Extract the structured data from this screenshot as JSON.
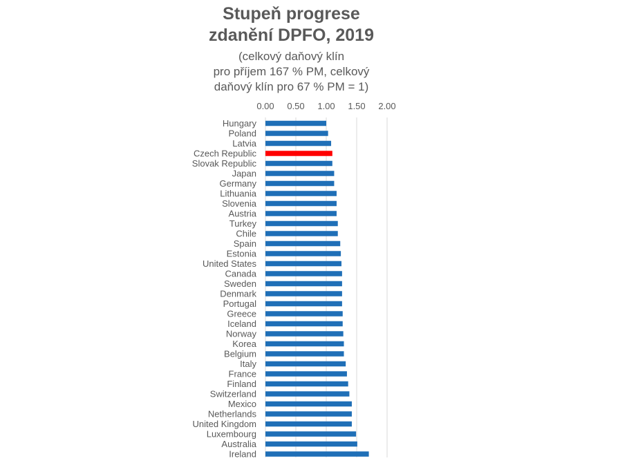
{
  "chart_data": {
    "type": "bar",
    "orientation": "horizontal",
    "title_lines": [
      "Stupeň progrese",
      "zdanění DPFO, 2019"
    ],
    "subtitle_lines": [
      "(celkový daňový klín",
      "pro příjem 167 % PM, celkový",
      "daňový klín pro 67 % PM = 1)"
    ],
    "x_ticks": [
      "0.00",
      "0.50",
      "1.00",
      "1.50",
      "2.00"
    ],
    "xlim": [
      0,
      2
    ],
    "x_axis_position": "top",
    "grid": "vertical",
    "colors": {
      "default": "#1f6fb7",
      "highlight": "#ff0000",
      "grid": "#d9d9d9",
      "text": "#595959"
    },
    "highlight_category": "Czech Republic",
    "categories": [
      "Hungary",
      "Poland",
      "Latvia",
      "Czech Republic",
      "Slovak Republic",
      "Japan",
      "Germany",
      "Lithuania",
      "Slovenia",
      "Austria",
      "Turkey",
      "Chile",
      "Spain",
      "Estonia",
      "United States",
      "Canada",
      "Sweden",
      "Denmark",
      "Portugal",
      "Greece",
      "Iceland",
      "Norway",
      "Korea",
      "Belgium",
      "Italy",
      "France",
      "Finland",
      "Switzerland",
      "Mexico",
      "Netherlands",
      "United Kingdom",
      "Luxembourg",
      "Australia",
      "Ireland"
    ],
    "values": [
      1.0,
      1.03,
      1.08,
      1.1,
      1.1,
      1.13,
      1.13,
      1.17,
      1.17,
      1.17,
      1.19,
      1.19,
      1.23,
      1.24,
      1.25,
      1.26,
      1.26,
      1.26,
      1.26,
      1.27,
      1.27,
      1.28,
      1.29,
      1.29,
      1.32,
      1.34,
      1.36,
      1.38,
      1.42,
      1.42,
      1.42,
      1.49,
      1.51,
      1.7
    ]
  }
}
